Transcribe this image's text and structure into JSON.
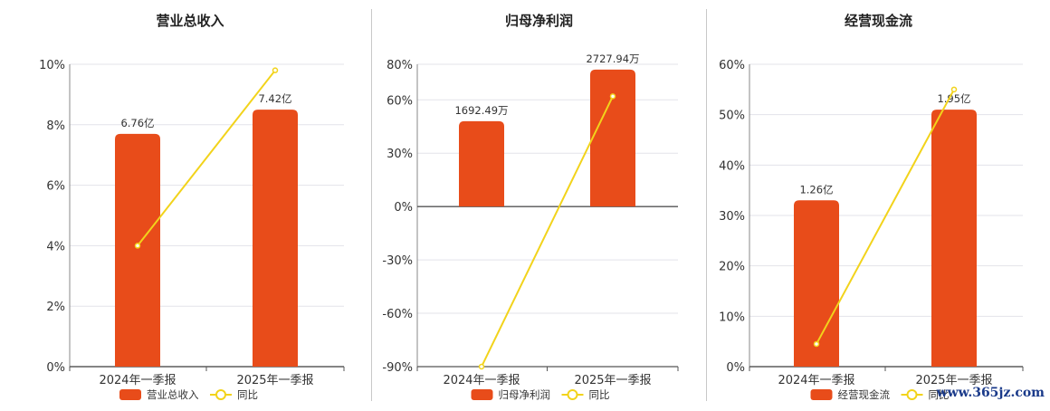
{
  "chart_data": [
    {
      "type": "bar",
      "title": "营业总收入",
      "categories": [
        "2024年一季报",
        "2025年一季报"
      ],
      "series": [
        {
          "name": "营业总收入",
          "kind": "bar",
          "values": [
            7.7,
            8.5
          ],
          "labels": [
            "6.76亿",
            "7.42亿"
          ]
        },
        {
          "name": "同比",
          "kind": "line",
          "values": [
            4.0,
            9.8
          ]
        }
      ],
      "yticks": [
        "0%",
        "2%",
        "4%",
        "6%",
        "8%",
        "10%"
      ],
      "ylim": [
        0,
        10
      ],
      "grid": true,
      "legend_position": "bottom",
      "colors": {
        "bar": "#e84c1a",
        "line": "#f2d31b"
      }
    },
    {
      "type": "bar",
      "title": "归母净利润",
      "categories": [
        "2024年一季报",
        "2025年一季报"
      ],
      "series": [
        {
          "name": "归母净利润",
          "kind": "bar",
          "values": [
            48,
            77
          ],
          "labels": [
            "1692.49万",
            "2727.94万"
          ]
        },
        {
          "name": "同比",
          "kind": "line",
          "values": [
            -90,
            62
          ]
        }
      ],
      "yticks": [
        "-90%",
        "-60%",
        "-30%",
        "0%",
        "30%",
        "60%",
        "80%"
      ],
      "ylim": [
        -90,
        80
      ],
      "grid": true,
      "legend_position": "bottom",
      "colors": {
        "bar": "#e84c1a",
        "line": "#f2d31b"
      }
    },
    {
      "type": "bar",
      "title": "经营现金流",
      "categories": [
        "2024年一季报",
        "2025年一季报"
      ],
      "series": [
        {
          "name": "经营现金流",
          "kind": "bar",
          "values": [
            33,
            51
          ],
          "labels": [
            "1.26亿",
            "1.95亿"
          ]
        },
        {
          "name": "同比",
          "kind": "line",
          "values": [
            4.5,
            55
          ]
        }
      ],
      "yticks": [
        "0%",
        "10%",
        "20%",
        "30%",
        "40%",
        "50%",
        "60%"
      ],
      "ylim": [
        0,
        60
      ],
      "grid": true,
      "legend_position": "bottom",
      "colors": {
        "bar": "#e84c1a",
        "line": "#f2d31b"
      }
    }
  ],
  "watermark": "www.365jz.com"
}
